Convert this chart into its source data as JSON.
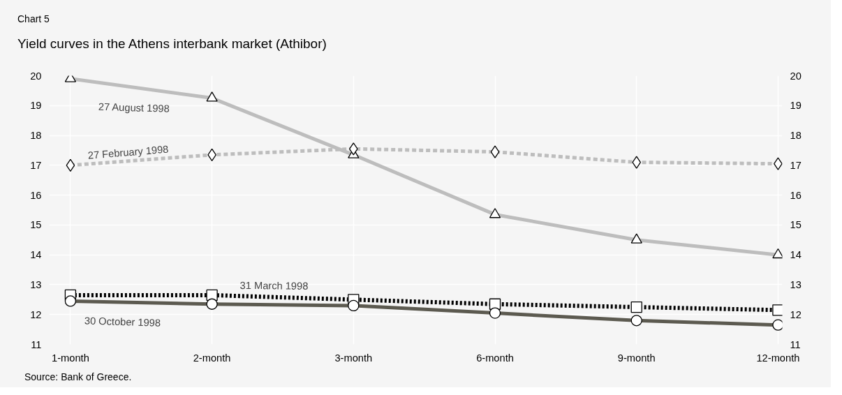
{
  "chart_data": {
    "type": "line",
    "subtitle": "Chart 5",
    "title": "Yield curves in the Athens interbank market (Athibor)",
    "categories": [
      "1-month",
      "2-month",
      "3-month",
      "6-month",
      "9-month",
      "12-month"
    ],
    "series": [
      {
        "name": "27 August 1998",
        "color": "#bdbdbd",
        "marker": "triangle",
        "line_style": "solid",
        "values": [
          19.9,
          19.25,
          17.35,
          15.35,
          14.5,
          14.0
        ]
      },
      {
        "name": "27 February 1998",
        "color": "#bdbdbd",
        "marker": "diamond",
        "line_style": "dashed",
        "values": [
          17.0,
          17.35,
          17.55,
          17.45,
          17.1,
          17.05
        ]
      },
      {
        "name": "31 March 1998",
        "color": "#000000",
        "marker": "square",
        "line_style": "dotted",
        "values": [
          12.65,
          12.65,
          12.5,
          12.35,
          12.25,
          12.15
        ]
      },
      {
        "name": "30 October 1998",
        "color": "#5c5a50",
        "marker": "circle",
        "line_style": "solid",
        "values": [
          12.45,
          12.35,
          12.3,
          12.05,
          11.8,
          11.65
        ]
      }
    ],
    "ylim": [
      11,
      20
    ],
    "yticks": [
      11,
      12,
      13,
      14,
      15,
      16,
      17,
      18,
      19,
      20
    ],
    "y2lim": [
      11,
      20
    ],
    "y2ticks": [
      11,
      12,
      13,
      14,
      15,
      16,
      17,
      18,
      19,
      20
    ],
    "grid": true,
    "legend": false,
    "annotations": [
      "Source: Bank of Greece."
    ]
  }
}
